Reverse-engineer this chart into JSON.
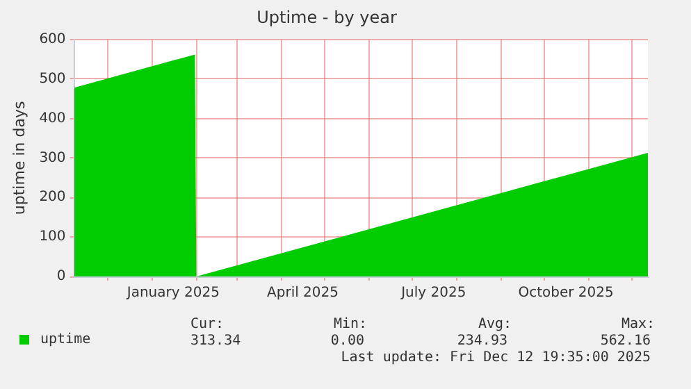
{
  "chart_data": {
    "type": "area",
    "title": "Uptime - by year",
    "ylabel": "uptime in days",
    "x": [
      "2024-11-08",
      "2025-01-31",
      "2025-02-01",
      "2025-12-12"
    ],
    "series": [
      {
        "name": "uptime",
        "color": "#00cc00",
        "values": [
          478,
          562,
          0,
          313
        ]
      }
    ],
    "xlim": [
      "2024-11-08",
      "2025-12-12"
    ],
    "xticks": [
      {
        "value": "2024-12-01",
        "label": null
      },
      {
        "value": "2025-01-01",
        "label": null
      },
      {
        "value": "2025-01-16",
        "label": "January 2025"
      },
      {
        "value": "2025-02-01",
        "label": null
      },
      {
        "value": "2025-03-01",
        "label": null
      },
      {
        "value": "2025-04-01",
        "label": null
      },
      {
        "value": "2025-04-16",
        "label": "April 2025"
      },
      {
        "value": "2025-05-01",
        "label": null
      },
      {
        "value": "2025-06-01",
        "label": null
      },
      {
        "value": "2025-07-01",
        "label": null
      },
      {
        "value": "2025-07-16",
        "label": "July 2025"
      },
      {
        "value": "2025-08-01",
        "label": null
      },
      {
        "value": "2025-09-01",
        "label": null
      },
      {
        "value": "2025-10-01",
        "label": null
      },
      {
        "value": "2025-10-16",
        "label": "October 2025"
      },
      {
        "value": "2025-11-01",
        "label": null
      },
      {
        "value": "2025-12-01",
        "label": null
      }
    ],
    "ylim": [
      0,
      600
    ],
    "yticks": [
      0,
      100,
      200,
      300,
      400,
      500,
      600
    ],
    "grid": true,
    "legend": "bottom left",
    "annotations": [
      "Cur:",
      "Min:",
      "Avg:",
      "Max:",
      "313.34",
      "0.00",
      "234.93",
      "562.16",
      "Last update: Fri Dec 12 19:35:00 2025"
    ]
  }
}
